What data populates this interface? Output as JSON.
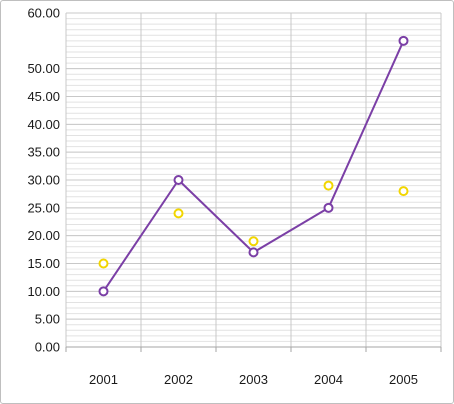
{
  "chart_data": {
    "type": "line",
    "title": "",
    "xlabel": "",
    "ylabel": "",
    "categories": [
      "2001",
      "2002",
      "2003",
      "2004",
      "2005"
    ],
    "ylim": [
      0,
      60
    ],
    "y_ticks": [
      "0.00",
      "5.00",
      "10.00",
      "15.00",
      "20.00",
      "25.00",
      "30.00",
      "35.00",
      "40.00",
      "45.00",
      "50.00",
      "60.00"
    ],
    "y_tick_values": [
      0,
      5,
      10,
      15,
      20,
      25,
      30,
      35,
      40,
      45,
      50,
      60
    ],
    "minor_grid_step": 1,
    "grid": true,
    "legend": "none",
    "series": [
      {
        "type": "line",
        "color": "#7b3fa6",
        "marker": "hollow-circle",
        "values": [
          10,
          30,
          17,
          25,
          55
        ]
      },
      {
        "type": "scatter",
        "color": "#f2d600",
        "marker": "hollow-circle",
        "values": [
          15,
          24,
          19,
          29,
          28
        ]
      }
    ]
  },
  "colors": {
    "line_series": "#7b3fa6",
    "point_series": "#f2d600",
    "major_grid": "#c8c8c8",
    "minor_grid": "#e2e2e2",
    "frame": "#bfbfbf"
  }
}
